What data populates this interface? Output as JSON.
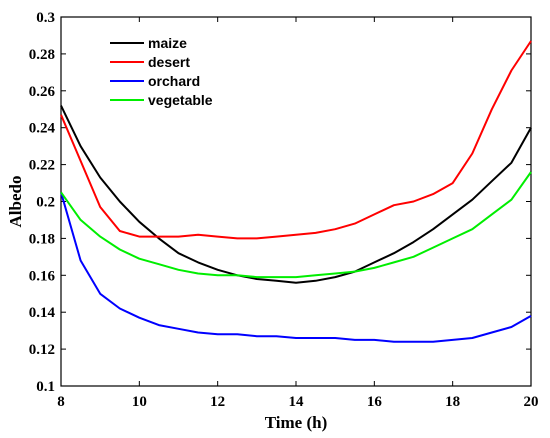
{
  "chart_data": {
    "type": "line",
    "title": "",
    "xlabel": "Time (h)",
    "ylabel": "Albedo",
    "xlim": [
      8,
      20
    ],
    "ylim": [
      0.1,
      0.3
    ],
    "xticks": [
      8,
      10,
      12,
      14,
      16,
      18,
      20
    ],
    "yticks": [
      0.1,
      0.12,
      0.14,
      0.16,
      0.18,
      0.2,
      0.22,
      0.24,
      0.26,
      0.28,
      0.3
    ],
    "ytick_labels": [
      "0.1",
      "0.12",
      "0.14",
      "0.16",
      "0.18",
      "0.2",
      "0.22",
      "0.24",
      "0.26",
      "0.28",
      "0.3"
    ],
    "grid": false,
    "legend_position": "top-left",
    "series": [
      {
        "name": "maize",
        "color": "#000000",
        "x": [
          8,
          8.5,
          9,
          9.5,
          10,
          10.5,
          11,
          11.5,
          12,
          12.5,
          13,
          13.5,
          14,
          14.5,
          15,
          15.5,
          16,
          16.5,
          17,
          17.5,
          18,
          18.5,
          19,
          19.5,
          20
        ],
        "y": [
          0.252,
          0.23,
          0.213,
          0.2,
          0.189,
          0.18,
          0.172,
          0.167,
          0.163,
          0.16,
          0.158,
          0.157,
          0.156,
          0.157,
          0.159,
          0.162,
          0.167,
          0.172,
          0.178,
          0.185,
          0.193,
          0.201,
          0.211,
          0.221,
          0.24
        ]
      },
      {
        "name": "desert",
        "color": "#ff0000",
        "x": [
          8,
          8.5,
          9,
          9.5,
          10,
          10.5,
          11,
          11.5,
          12,
          12.5,
          13,
          13.5,
          14,
          14.5,
          15,
          15.5,
          16,
          16.5,
          17,
          17.5,
          18,
          18.5,
          19,
          19.5,
          20
        ],
        "y": [
          0.247,
          0.222,
          0.197,
          0.184,
          0.181,
          0.181,
          0.181,
          0.182,
          0.181,
          0.18,
          0.18,
          0.181,
          0.182,
          0.183,
          0.185,
          0.188,
          0.193,
          0.198,
          0.2,
          0.204,
          0.21,
          0.226,
          0.25,
          0.271,
          0.287
        ]
      },
      {
        "name": "orchard",
        "color": "#0000ff",
        "x": [
          8,
          8.5,
          9,
          9.5,
          10,
          10.5,
          11,
          11.5,
          12,
          12.5,
          13,
          13.5,
          14,
          14.5,
          15,
          15.5,
          16,
          16.5,
          17,
          17.5,
          18,
          18.5,
          19,
          19.5,
          20
        ],
        "y": [
          0.205,
          0.168,
          0.15,
          0.142,
          0.137,
          0.133,
          0.131,
          0.129,
          0.128,
          0.128,
          0.127,
          0.127,
          0.126,
          0.126,
          0.126,
          0.125,
          0.125,
          0.124,
          0.124,
          0.124,
          0.125,
          0.126,
          0.129,
          0.132,
          0.138
        ]
      },
      {
        "name": "vegetable",
        "color": "#00ee00",
        "x": [
          8,
          8.5,
          9,
          9.5,
          10,
          10.5,
          11,
          11.5,
          12,
          12.5,
          13,
          13.5,
          14,
          14.5,
          15,
          15.5,
          16,
          16.5,
          17,
          17.5,
          18,
          18.5,
          19,
          19.5,
          20
        ],
        "y": [
          0.205,
          0.19,
          0.181,
          0.174,
          0.169,
          0.166,
          0.163,
          0.161,
          0.16,
          0.16,
          0.159,
          0.159,
          0.159,
          0.16,
          0.161,
          0.162,
          0.164,
          0.167,
          0.17,
          0.175,
          0.18,
          0.185,
          0.193,
          0.201,
          0.216
        ]
      }
    ]
  }
}
